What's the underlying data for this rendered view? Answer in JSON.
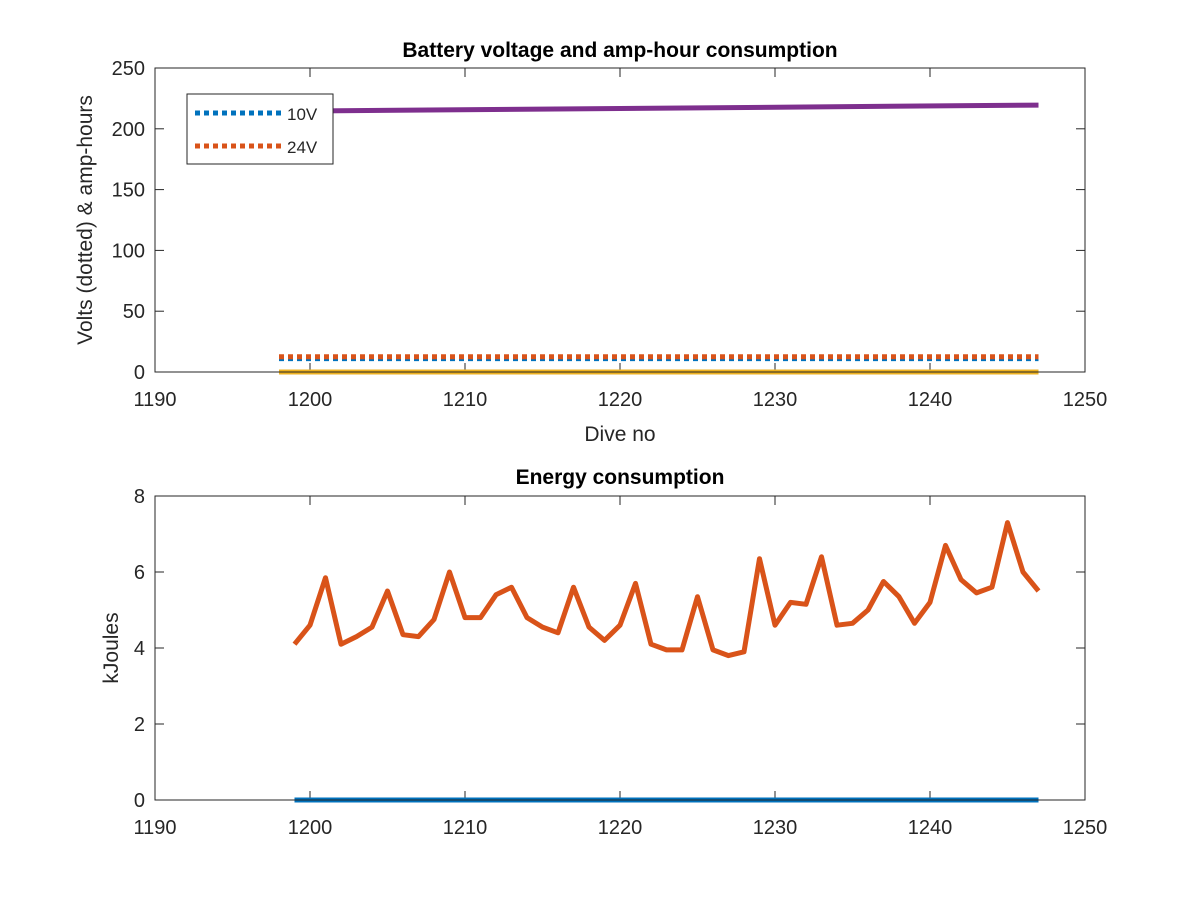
{
  "chart_data": [
    {
      "type": "line",
      "title": "Battery voltage and amp-hour consumption",
      "xlabel": "Dive no",
      "ylabel": "Volts (dotted) & amp-hours",
      "xlim": [
        1190,
        1250
      ],
      "ylim": [
        0,
        250
      ],
      "x_ticks": [
        1190,
        1200,
        1210,
        1220,
        1230,
        1240,
        1250
      ],
      "y_ticks": [
        0,
        50,
        100,
        150,
        200,
        250
      ],
      "legend_position": "top-left",
      "series": [
        {
          "name": "10V",
          "style": "dotted",
          "color": "#0072BD",
          "x": [
            1198,
            1247
          ],
          "y": [
            11,
            11
          ]
        },
        {
          "name": "24V",
          "style": "dotted",
          "color": "#D95319",
          "x": [
            1198,
            1247
          ],
          "y": [
            12.5,
            12.5
          ]
        },
        {
          "style": "solid",
          "color": "#EDB120",
          "x": [
            1198,
            1247
          ],
          "y": [
            0,
            0
          ]
        },
        {
          "style": "solid",
          "color": "#7E2F8E",
          "x": [
            1198,
            1247
          ],
          "y": [
            214.5,
            219.5
          ]
        }
      ]
    },
    {
      "type": "line",
      "title": "Energy consumption",
      "xlabel": "",
      "ylabel": "kJoules",
      "xlim": [
        1190,
        1250
      ],
      "ylim": [
        0,
        8
      ],
      "x_ticks": [
        1190,
        1200,
        1210,
        1220,
        1230,
        1240,
        1250
      ],
      "y_ticks": [
        0,
        2,
        4,
        6,
        8
      ],
      "series": [
        {
          "style": "solid",
          "color": "#0072BD",
          "x": [
            1199,
            1247
          ],
          "y": [
            0,
            0
          ]
        },
        {
          "style": "solid",
          "color": "#D95319",
          "x": [
            1199,
            1200,
            1201,
            1202,
            1203,
            1204,
            1205,
            1206,
            1207,
            1208,
            1209,
            1210,
            1211,
            1212,
            1213,
            1214,
            1215,
            1216,
            1217,
            1218,
            1219,
            1220,
            1221,
            1222,
            1223,
            1224,
            1225,
            1226,
            1227,
            1228,
            1229,
            1230,
            1231,
            1232,
            1233,
            1234,
            1235,
            1236,
            1237,
            1238,
            1239,
            1240,
            1241,
            1242,
            1243,
            1244,
            1245,
            1246,
            1247
          ],
          "y": [
            4.1,
            4.6,
            5.85,
            4.1,
            4.3,
            4.55,
            5.5,
            4.35,
            4.3,
            4.75,
            6.0,
            4.8,
            4.8,
            5.4,
            5.6,
            4.8,
            4.55,
            4.4,
            5.6,
            4.55,
            4.2,
            4.6,
            5.7,
            4.1,
            3.95,
            3.95,
            5.35,
            3.95,
            3.8,
            3.9,
            6.35,
            4.6,
            5.2,
            5.15,
            6.4,
            4.6,
            4.65,
            5.0,
            5.75,
            5.35,
            4.65,
            5.2,
            6.7,
            5.8,
            5.45,
            5.6,
            7.3,
            6.0,
            5.5
          ]
        }
      ]
    }
  ]
}
